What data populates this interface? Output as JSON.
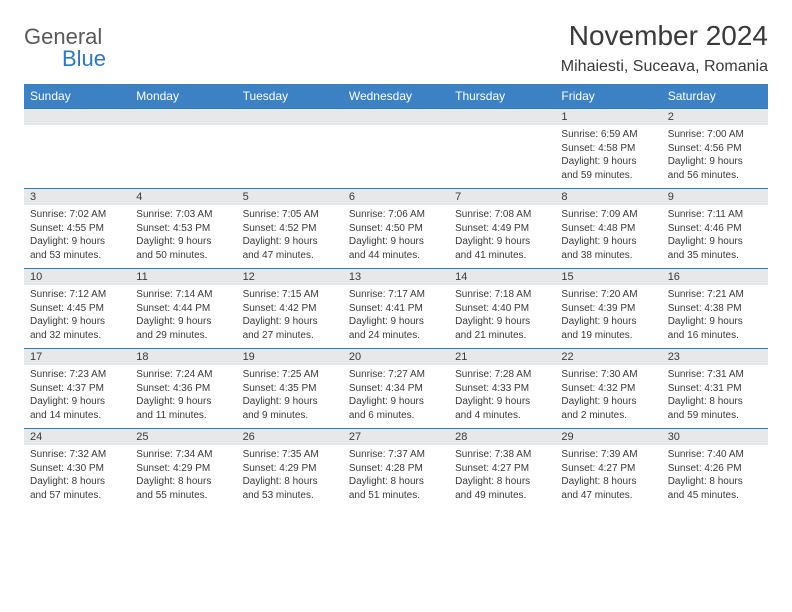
{
  "brand": {
    "top": "General",
    "bottom": "Blue"
  },
  "title": "November 2024",
  "location": "Mihaiesti, Suceava, Romania",
  "colors": {
    "header_bg": "#3b81c3",
    "daynum_bg": "#e7e8e9",
    "rule": "#2f78bd",
    "text": "#3a3a3a"
  },
  "weekdays": [
    "Sunday",
    "Monday",
    "Tuesday",
    "Wednesday",
    "Thursday",
    "Friday",
    "Saturday"
  ],
  "weeks": [
    [
      null,
      null,
      null,
      null,
      null,
      {
        "n": "1",
        "sr": "6:59 AM",
        "ss": "4:58 PM",
        "dl": "9 hours and 59 minutes."
      },
      {
        "n": "2",
        "sr": "7:00 AM",
        "ss": "4:56 PM",
        "dl": "9 hours and 56 minutes."
      }
    ],
    [
      {
        "n": "3",
        "sr": "7:02 AM",
        "ss": "4:55 PM",
        "dl": "9 hours and 53 minutes."
      },
      {
        "n": "4",
        "sr": "7:03 AM",
        "ss": "4:53 PM",
        "dl": "9 hours and 50 minutes."
      },
      {
        "n": "5",
        "sr": "7:05 AM",
        "ss": "4:52 PM",
        "dl": "9 hours and 47 minutes."
      },
      {
        "n": "6",
        "sr": "7:06 AM",
        "ss": "4:50 PM",
        "dl": "9 hours and 44 minutes."
      },
      {
        "n": "7",
        "sr": "7:08 AM",
        "ss": "4:49 PM",
        "dl": "9 hours and 41 minutes."
      },
      {
        "n": "8",
        "sr": "7:09 AM",
        "ss": "4:48 PM",
        "dl": "9 hours and 38 minutes."
      },
      {
        "n": "9",
        "sr": "7:11 AM",
        "ss": "4:46 PM",
        "dl": "9 hours and 35 minutes."
      }
    ],
    [
      {
        "n": "10",
        "sr": "7:12 AM",
        "ss": "4:45 PM",
        "dl": "9 hours and 32 minutes."
      },
      {
        "n": "11",
        "sr": "7:14 AM",
        "ss": "4:44 PM",
        "dl": "9 hours and 29 minutes."
      },
      {
        "n": "12",
        "sr": "7:15 AM",
        "ss": "4:42 PM",
        "dl": "9 hours and 27 minutes."
      },
      {
        "n": "13",
        "sr": "7:17 AM",
        "ss": "4:41 PM",
        "dl": "9 hours and 24 minutes."
      },
      {
        "n": "14",
        "sr": "7:18 AM",
        "ss": "4:40 PM",
        "dl": "9 hours and 21 minutes."
      },
      {
        "n": "15",
        "sr": "7:20 AM",
        "ss": "4:39 PM",
        "dl": "9 hours and 19 minutes."
      },
      {
        "n": "16",
        "sr": "7:21 AM",
        "ss": "4:38 PM",
        "dl": "9 hours and 16 minutes."
      }
    ],
    [
      {
        "n": "17",
        "sr": "7:23 AM",
        "ss": "4:37 PM",
        "dl": "9 hours and 14 minutes."
      },
      {
        "n": "18",
        "sr": "7:24 AM",
        "ss": "4:36 PM",
        "dl": "9 hours and 11 minutes."
      },
      {
        "n": "19",
        "sr": "7:25 AM",
        "ss": "4:35 PM",
        "dl": "9 hours and 9 minutes."
      },
      {
        "n": "20",
        "sr": "7:27 AM",
        "ss": "4:34 PM",
        "dl": "9 hours and 6 minutes."
      },
      {
        "n": "21",
        "sr": "7:28 AM",
        "ss": "4:33 PM",
        "dl": "9 hours and 4 minutes."
      },
      {
        "n": "22",
        "sr": "7:30 AM",
        "ss": "4:32 PM",
        "dl": "9 hours and 2 minutes."
      },
      {
        "n": "23",
        "sr": "7:31 AM",
        "ss": "4:31 PM",
        "dl": "8 hours and 59 minutes."
      }
    ],
    [
      {
        "n": "24",
        "sr": "7:32 AM",
        "ss": "4:30 PM",
        "dl": "8 hours and 57 minutes."
      },
      {
        "n": "25",
        "sr": "7:34 AM",
        "ss": "4:29 PM",
        "dl": "8 hours and 55 minutes."
      },
      {
        "n": "26",
        "sr": "7:35 AM",
        "ss": "4:29 PM",
        "dl": "8 hours and 53 minutes."
      },
      {
        "n": "27",
        "sr": "7:37 AM",
        "ss": "4:28 PM",
        "dl": "8 hours and 51 minutes."
      },
      {
        "n": "28",
        "sr": "7:38 AM",
        "ss": "4:27 PM",
        "dl": "8 hours and 49 minutes."
      },
      {
        "n": "29",
        "sr": "7:39 AM",
        "ss": "4:27 PM",
        "dl": "8 hours and 47 minutes."
      },
      {
        "n": "30",
        "sr": "7:40 AM",
        "ss": "4:26 PM",
        "dl": "8 hours and 45 minutes."
      }
    ]
  ],
  "labels": {
    "sunrise": "Sunrise:",
    "sunset": "Sunset:",
    "daylight": "Daylight:"
  }
}
